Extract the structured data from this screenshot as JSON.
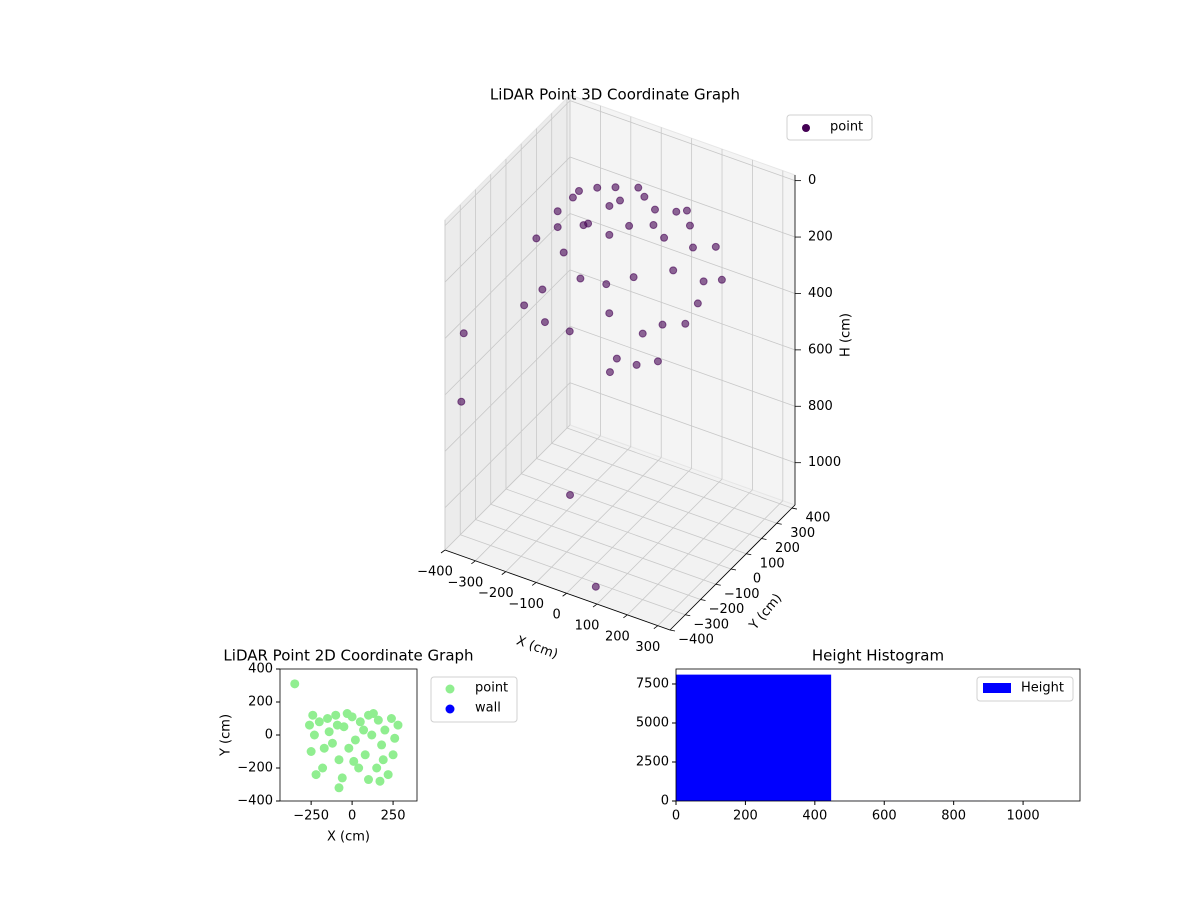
{
  "chart_data": [
    {
      "type": "scatter3d",
      "title": "LiDAR Point 3D Coordinate Graph",
      "x_label": "X (cm)",
      "y_label": "Y (cm)",
      "z_label": "H (cm)",
      "xlim": [
        -400,
        340
      ],
      "ylim": [
        -400,
        420
      ],
      "zlim": [
        -20,
        1150
      ],
      "z_inverted": true,
      "xticks": [
        {
          "value": -400,
          "label": "−400"
        },
        {
          "value": -300,
          "label": "−300"
        },
        {
          "value": -200,
          "label": "−200"
        },
        {
          "value": -100,
          "label": "−100"
        },
        0,
        100,
        200,
        300
      ],
      "yticks": [
        {
          "value": -400,
          "label": "−400"
        },
        {
          "value": -300,
          "label": "−300"
        },
        {
          "value": -200,
          "label": "−200"
        },
        {
          "value": -100,
          "label": "−100"
        },
        0,
        100,
        200,
        300,
        400
      ],
      "zticks": [
        0,
        200,
        400,
        600,
        800,
        1000
      ],
      "grid": true,
      "legend": "upper right",
      "series": [
        {
          "name": "point",
          "color": "#440154",
          "x": [
            -250,
            -230,
            -200,
            -180,
            -150,
            -120,
            -100,
            -80,
            -50,
            -20,
            0,
            20,
            50,
            80,
            100,
            120,
            150,
            160,
            180,
            200,
            220,
            240,
            260,
            280,
            -260,
            -220,
            -140,
            -60,
            40,
            100,
            190,
            -240,
            70,
            -30,
            130,
            -170,
            10,
            250,
            -90,
            170,
            96,
            -70,
            -55,
            -400,
            -400,
            -150,
            216
          ],
          "y": [
            -100,
            0,
            80,
            -200,
            100,
            -50,
            120,
            -150,
            50,
            -80,
            110,
            -30,
            80,
            -120,
            120,
            0,
            -200,
            90,
            -60,
            30,
            -240,
            100,
            -20,
            60,
            60,
            -240,
            20,
            -260,
            -200,
            -270,
            -150,
            120,
            30,
            130,
            130,
            -80,
            -160,
            -120,
            60,
            -280,
            -400,
            -238,
            -6,
            -277,
            -293,
            -243,
            30
          ],
          "z": [
            150,
            100,
            60,
            250,
            40,
            80,
            30,
            200,
            20,
            60,
            20,
            40,
            30,
            150,
            40,
            60,
            280,
            50,
            120,
            80,
            330,
            100,
            150,
            180,
            200,
            300,
            120,
            320,
            250,
            350,
            260,
            120,
            50,
            10,
            30,
            180,
            180,
            250,
            60,
            340,
            1090,
            916,
            600,
            448,
            682,
            331,
            272
          ]
        }
      ]
    },
    {
      "type": "scatter",
      "title": "LiDAR Point 2D Coordinate Graph",
      "x_label": "X (cm)",
      "y_label": "Y (cm)",
      "xlim": [
        -440,
        396
      ],
      "ylim": [
        -400,
        400
      ],
      "xticks": [
        {
          "value": -250,
          "label": "−250"
        },
        0,
        250
      ],
      "yticks": [
        {
          "value": -400,
          "label": "−400"
        },
        {
          "value": -200,
          "label": "−200"
        },
        0,
        200,
        400
      ],
      "legend": "outside right",
      "series": [
        {
          "name": "point",
          "color": "#90ee90",
          "x": [
            -250,
            -230,
            -200,
            -180,
            -150,
            -120,
            -100,
            -80,
            -50,
            -20,
            0,
            20,
            50,
            80,
            100,
            120,
            150,
            160,
            180,
            200,
            220,
            240,
            260,
            280,
            -260,
            -220,
            -140,
            -60,
            40,
            100,
            190,
            -240,
            70,
            -30,
            130,
            -170,
            10,
            250,
            -90,
            170,
            -350,
            -80
          ],
          "y": [
            -100,
            0,
            80,
            -200,
            100,
            -50,
            120,
            -150,
            50,
            -80,
            110,
            -30,
            80,
            -120,
            120,
            0,
            -200,
            90,
            -60,
            30,
            -240,
            100,
            -20,
            60,
            60,
            -240,
            20,
            -260,
            -200,
            -270,
            -150,
            120,
            30,
            130,
            130,
            -80,
            -160,
            -120,
            60,
            -280,
            310,
            -320
          ]
        },
        {
          "name": "wall",
          "color": "#0000ff",
          "x": [],
          "y": []
        }
      ]
    },
    {
      "type": "histogram",
      "title": "Height Histogram",
      "xlim": [
        0,
        1164
      ],
      "ylim": [
        0,
        8460
      ],
      "xticks": [
        0,
        200,
        400,
        600,
        800,
        1000
      ],
      "yticks": [
        0,
        2500,
        5000,
        7500
      ],
      "legend": "upper right",
      "series": [
        {
          "name": "Height",
          "color": "#0000ff",
          "bins": [
            0,
            447,
            894,
            1120
          ],
          "counts": [
            8100,
            5,
            2
          ]
        }
      ]
    }
  ]
}
